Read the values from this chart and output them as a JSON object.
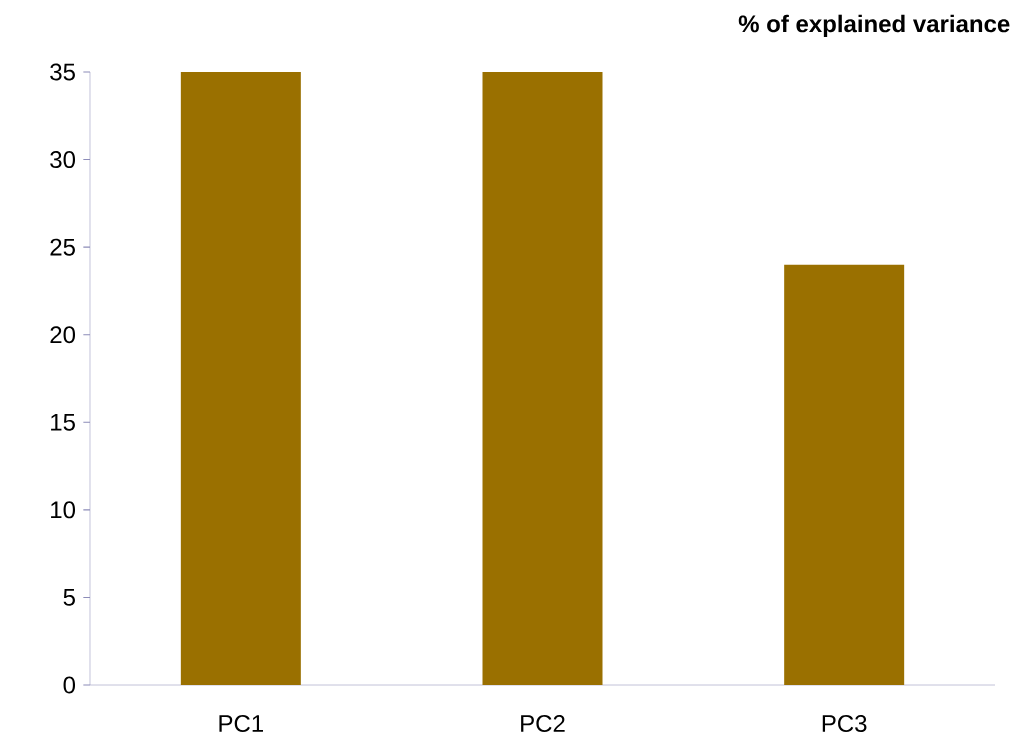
{
  "chart_data": {
    "type": "bar",
    "title": "% of explained variance",
    "categories": [
      "PC1",
      "PC2",
      "PC3"
    ],
    "values": [
      35,
      35,
      24
    ],
    "color": "#9a7000",
    "ylim": [
      0,
      35
    ],
    "yticks": [
      0,
      5,
      10,
      15,
      20,
      25,
      30,
      35
    ],
    "grid": false
  }
}
